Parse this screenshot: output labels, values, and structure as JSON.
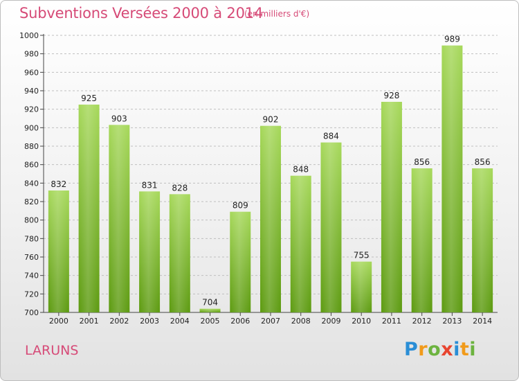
{
  "header": {
    "title": "Subventions Versées 2000 à 2014",
    "subtitle": "(en milliers d'€)"
  },
  "footer": {
    "commune": "LARUNS",
    "logo_letters": [
      "P",
      "r",
      "o",
      "x",
      "i",
      "t",
      "i"
    ],
    "logo_colors": [
      "#2a8ed6",
      "#f19a1a",
      "#6cb33f",
      "#e8442f",
      "#2a8ed6",
      "#f19a1a",
      "#6cb33f"
    ]
  },
  "colors": {
    "bar_top": "#a6d85a",
    "bar_bottom": "#5c9a10",
    "grid": "#bfbfbf",
    "title": "#d64a77"
  },
  "chart_data": {
    "type": "bar",
    "title": "Subventions Versées 2000 à 2014",
    "subtitle": "(en milliers d'€)",
    "categories": [
      "2000",
      "2001",
      "2002",
      "2003",
      "2004",
      "2005",
      "2006",
      "2007",
      "2008",
      "2009",
      "2010",
      "2011",
      "2012",
      "2013",
      "2014"
    ],
    "values": [
      832,
      925,
      903,
      831,
      828,
      704,
      809,
      902,
      848,
      884,
      755,
      928,
      856,
      989,
      856
    ],
    "ylim": [
      700,
      1000
    ],
    "ytick_step": 20,
    "grid": true,
    "legend": "none"
  }
}
